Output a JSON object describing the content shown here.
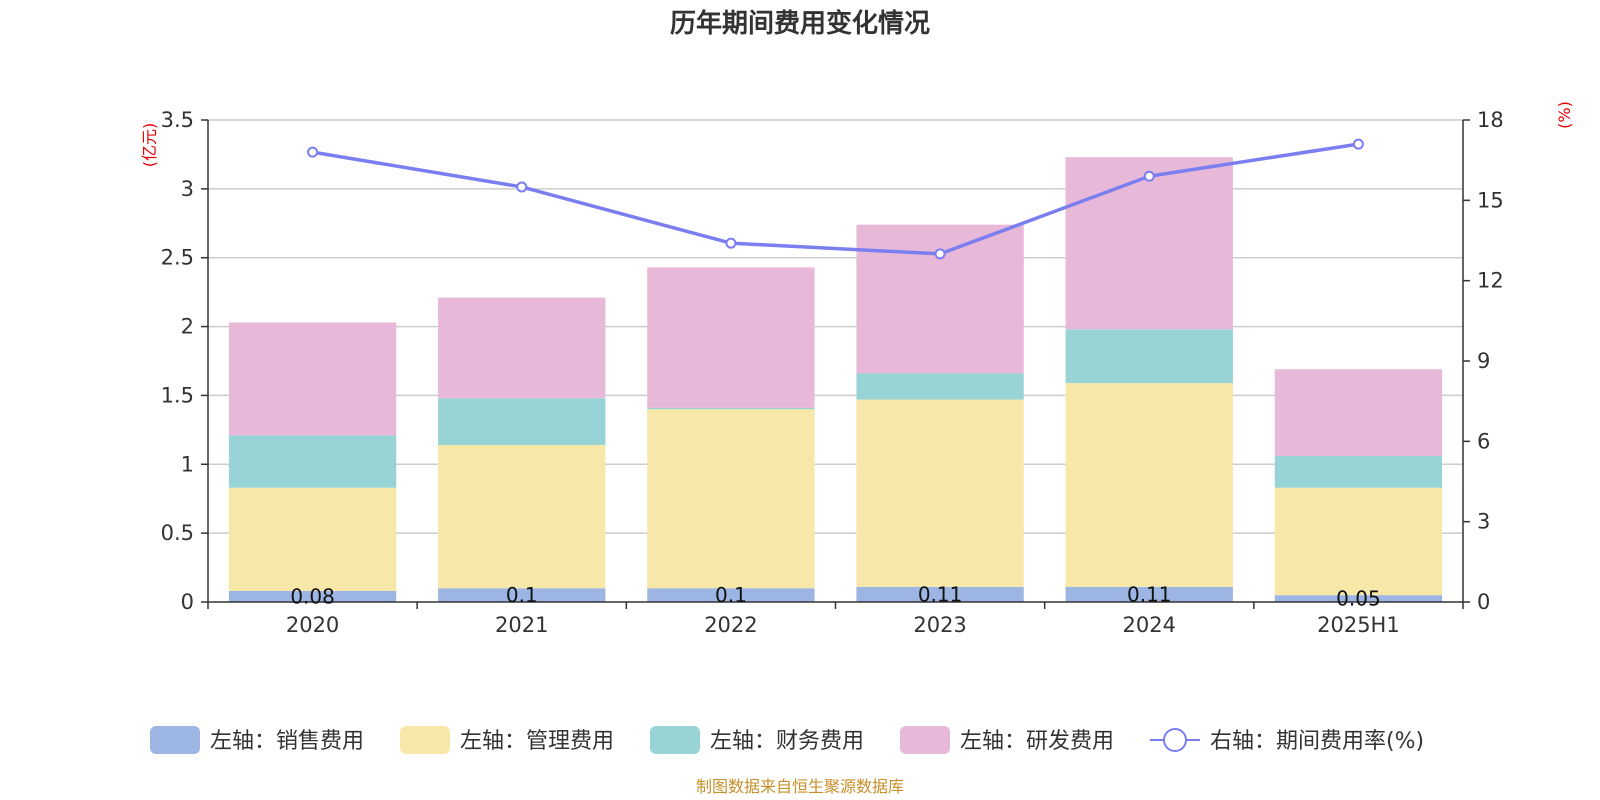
{
  "chart_data": {
    "type": "bar",
    "stacked": true,
    "title": "历年期间费用变化情况",
    "categories": [
      "2020",
      "2021",
      "2022",
      "2023",
      "2024",
      "2025H1"
    ],
    "y_left": {
      "unit_label": "(亿元)",
      "ylim": [
        0,
        3.5
      ],
      "ticks": [
        "0",
        "0.5",
        "1",
        "1.5",
        "2",
        "2.5",
        "3",
        "3.5"
      ]
    },
    "y_right": {
      "unit_label": "(%)",
      "ylim": [
        0,
        18
      ],
      "ticks": [
        "0",
        "3",
        "6",
        "9",
        "12",
        "15",
        "18"
      ]
    },
    "series": [
      {
        "name": "左轴：销售费用",
        "axis": "left",
        "type": "bar",
        "color": "#9db5e2",
        "values": [
          0.08,
          0.1,
          0.1,
          0.11,
          0.11,
          0.05
        ],
        "data_labels": [
          "0.08",
          "0.1",
          "0.1",
          "0.11",
          "0.11",
          "0.05"
        ]
      },
      {
        "name": "左轴：管理费用",
        "axis": "left",
        "type": "bar",
        "color": "#f7e7a8",
        "values": [
          0.75,
          1.04,
          1.3,
          1.36,
          1.48,
          0.78
        ]
      },
      {
        "name": "左轴：财务费用",
        "axis": "left",
        "type": "bar",
        "color": "#98d4d5",
        "values": [
          0.38,
          0.34,
          0.01,
          0.19,
          0.39,
          0.23
        ]
      },
      {
        "name": "左轴：研发费用",
        "axis": "left",
        "type": "bar",
        "color": "#e7b8d8",
        "values": [
          0.82,
          0.73,
          1.02,
          1.08,
          1.25,
          0.63
        ]
      },
      {
        "name": "右轴：期间费用率(%)",
        "axis": "right",
        "type": "line",
        "color": "#7b7ef0",
        "values": [
          16.8,
          15.5,
          13.4,
          13.0,
          15.9,
          17.1
        ]
      }
    ],
    "legend_position": "bottom",
    "grid": true
  },
  "footer": {
    "source": "制图数据来自恒生聚源数据库"
  }
}
